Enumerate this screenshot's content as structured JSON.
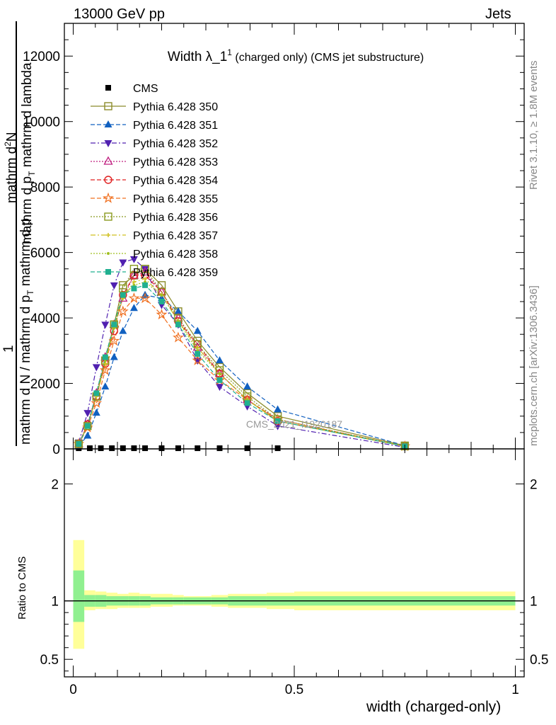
{
  "header": {
    "left": "13000 GeV pp",
    "right": "Jets"
  },
  "side_text": {
    "rivet": "Rivet 3.1.10, ≥ 1.8M events",
    "mcplots": "mcplots.cern.ch [arXiv:1306.3436]"
  },
  "main_title": {
    "main": "Width λ_1",
    "sup": "1",
    "rest": " (charged only) (CMS jet substructure)"
  },
  "watermark": "CMS_2021_I1920187",
  "y_axis_label": {
    "one": "1",
    "num_top": "mathrm d",
    "num_sup": "2",
    "num_mid": "N",
    "frac_num": "mathrm d p",
    "frac_num_sub": "T",
    "frac_num_rest": " mathrm d lambda",
    "frac_den": "mathrm d N / mathrm d p",
    "frac_den_sub": "T",
    "frac_den_rest": " mathrm d p"
  },
  "ratio_ylabel": "Ratio to CMS",
  "x_axis_label": "width (charged-only)",
  "colors": {
    "ratio_band_inner": "#90f090",
    "ratio_band_outer": "#ffff99"
  },
  "chart_data": [
    {
      "type": "line",
      "panel": "main",
      "x_range": [
        -0.02,
        1.02
      ],
      "y_range": [
        0,
        13000
      ],
      "y_ticks": [
        0,
        2000,
        4000,
        6000,
        8000,
        10000,
        12000
      ],
      "y_tick_labels": [
        "0",
        "2000",
        "4000",
        "6000",
        "8000",
        "10000",
        "12000"
      ],
      "legend_position": "top-left",
      "series": [
        {
          "name": "CMS",
          "color": "#000000",
          "marker": "square-filled",
          "dash": "none",
          "x": [
            0.0125,
            0.0375,
            0.0625,
            0.0875,
            0.1125,
            0.1375,
            0.1625,
            0.2,
            0.2375,
            0.2812,
            0.3312,
            0.3937,
            0.4625
          ],
          "y": [
            20,
            20,
            20,
            20,
            20,
            20,
            20,
            20,
            20,
            20,
            20,
            20,
            20
          ]
        },
        {
          "name": "Pythia 6.428 350",
          "color": "#8b8b2a",
          "marker": "square-open",
          "dash": "none",
          "x": [
            0.0125,
            0.0325,
            0.0525,
            0.0725,
            0.0925,
            0.1125,
            0.1375,
            0.1625,
            0.2,
            0.2375,
            0.2812,
            0.3312,
            0.3937,
            0.4625,
            0.75
          ],
          "y": [
            150,
            700,
            1600,
            2700,
            3800,
            5000,
            5300,
            5500,
            5000,
            4200,
            3300,
            2500,
            1700,
            1000,
            100
          ]
        },
        {
          "name": "Pythia 6.428 351",
          "color": "#1060c0",
          "marker": "triangle-up-filled",
          "dash": "6,3",
          "x": [
            0.0125,
            0.0325,
            0.0525,
            0.0725,
            0.0925,
            0.1125,
            0.1375,
            0.1625,
            0.2,
            0.2375,
            0.2812,
            0.3312,
            0.3937,
            0.4625,
            0.75
          ],
          "y": [
            100,
            400,
            1100,
            1900,
            2800,
            3600,
            4300,
            4700,
            4600,
            4200,
            3600,
            2700,
            1900,
            1200,
            100
          ]
        },
        {
          "name": "Pythia 6.428 352",
          "color": "#5020b0",
          "marker": "triangle-down-filled",
          "dash": "7,3,2,3",
          "x": [
            0.0125,
            0.0325,
            0.0525,
            0.0725,
            0.0925,
            0.1125,
            0.1375,
            0.1625,
            0.2,
            0.2375,
            0.2812,
            0.3312,
            0.3937,
            0.4625,
            0.75
          ],
          "y": [
            200,
            1100,
            2500,
            3800,
            5000,
            5700,
            5800,
            5500,
            4400,
            3800,
            2700,
            1900,
            1300,
            700,
            50
          ]
        },
        {
          "name": "Pythia 6.428 353",
          "color": "#c02080",
          "marker": "triangle-up-open",
          "dash": "2,2",
          "x": [
            0.0125,
            0.0325,
            0.0525,
            0.0725,
            0.0925,
            0.1125,
            0.1375,
            0.1625,
            0.2,
            0.2375,
            0.2812,
            0.3312,
            0.3937,
            0.4625,
            0.75
          ],
          "y": [
            150,
            750,
            1700,
            2800,
            3800,
            4600,
            5300,
            5400,
            4800,
            4000,
            3100,
            2300,
            1500,
            900,
            80
          ]
        },
        {
          "name": "Pythia 6.428 354",
          "color": "#e02020",
          "marker": "circle-open",
          "dash": "6,3",
          "x": [
            0.0125,
            0.0325,
            0.0525,
            0.0725,
            0.0925,
            0.1125,
            0.1375,
            0.1625,
            0.2,
            0.2375,
            0.2812,
            0.3312,
            0.3937,
            0.4625,
            0.75
          ],
          "y": [
            150,
            750,
            1600,
            2600,
            3600,
            4700,
            5300,
            5300,
            4800,
            3900,
            3200,
            2300,
            1500,
            850,
            80
          ]
        },
        {
          "name": "Pythia 6.428 355",
          "color": "#f07020",
          "marker": "star-open",
          "dash": "6,3",
          "x": [
            0.0125,
            0.0325,
            0.0525,
            0.0725,
            0.0925,
            0.1125,
            0.1375,
            0.1625,
            0.2,
            0.2375,
            0.2812,
            0.3312,
            0.3937,
            0.4625,
            0.75
          ],
          "y": [
            150,
            650,
            1400,
            2400,
            3300,
            4200,
            4600,
            4600,
            4100,
            3400,
            2700,
            2100,
            1500,
            900,
            80
          ]
        },
        {
          "name": "Pythia 6.428 356",
          "color": "#8a9a20",
          "marker": "square-open",
          "dash": "2,2",
          "x": [
            0.0125,
            0.0325,
            0.0525,
            0.0725,
            0.0925,
            0.1125,
            0.1375,
            0.1625,
            0.2,
            0.2375,
            0.2812,
            0.3312,
            0.3937,
            0.4625,
            0.75
          ],
          "y": [
            150,
            700,
            1600,
            2700,
            3800,
            4900,
            5500,
            5500,
            4800,
            4000,
            3200,
            2400,
            1600,
            900,
            80
          ]
        },
        {
          "name": "Pythia 6.428 357",
          "color": "#d0c020",
          "marker": "cross-small",
          "dash": "7,3,2,3",
          "x": [
            0.0125,
            0.0325,
            0.0525,
            0.0725,
            0.0925,
            0.1125,
            0.1375,
            0.1625,
            0.2,
            0.2375,
            0.2812,
            0.3312,
            0.3937,
            0.4625,
            0.75
          ],
          "y": [
            150,
            700,
            1600,
            2600,
            3700,
            4600,
            5100,
            5200,
            4700,
            3900,
            3100,
            2300,
            1500,
            850,
            80
          ]
        },
        {
          "name": "Pythia 6.428 358",
          "color": "#a0c020",
          "marker": "dot",
          "dash": "2,2",
          "x": [
            0.0125,
            0.0325,
            0.0525,
            0.0725,
            0.0925,
            0.1125,
            0.1375,
            0.1625,
            0.2,
            0.2375,
            0.2812,
            0.3312,
            0.3937,
            0.4625,
            0.75
          ],
          "y": [
            150,
            700,
            1650,
            2700,
            3700,
            4700,
            5000,
            5100,
            4700,
            3900,
            3000,
            2300,
            1500,
            850,
            80
          ]
        },
        {
          "name": "Pythia 6.428 359",
          "color": "#20b090",
          "marker": "square-filled",
          "dash": "6,3",
          "x": [
            0.0125,
            0.0325,
            0.0525,
            0.0725,
            0.0925,
            0.1125,
            0.1375,
            0.1625,
            0.2,
            0.2375,
            0.2812,
            0.3312,
            0.3937,
            0.4625,
            0.75
          ],
          "y": [
            150,
            700,
            1700,
            2800,
            3800,
            4700,
            4900,
            5000,
            4500,
            3800,
            2900,
            2100,
            1400,
            850,
            80
          ]
        }
      ]
    },
    {
      "type": "area",
      "panel": "ratio",
      "x_range": [
        -0.02,
        1.02
      ],
      "y_range": [
        0.35,
        2.3
      ],
      "y_ticks": [
        0.5,
        1,
        2
      ],
      "y_tick_labels": [
        "0.5",
        "1",
        "2"
      ],
      "x_ticks": [
        0,
        0.5,
        1
      ],
      "x_tick_labels": [
        "0",
        "0.5",
        "1"
      ],
      "bins": [
        {
          "x0": 0.0,
          "x1": 0.025,
          "inner_lo": 0.82,
          "inner_hi": 1.26,
          "outer_lo": 0.59,
          "outer_hi": 1.52
        },
        {
          "x0": 0.025,
          "x1": 0.05,
          "inner_lo": 0.95,
          "inner_hi": 1.05,
          "outer_lo": 0.92,
          "outer_hi": 1.09
        },
        {
          "x0": 0.05,
          "x1": 0.075,
          "inner_lo": 0.95,
          "inner_hi": 1.05,
          "outer_lo": 0.93,
          "outer_hi": 1.08
        },
        {
          "x0": 0.075,
          "x1": 0.1,
          "inner_lo": 0.96,
          "inner_hi": 1.04,
          "outer_lo": 0.93,
          "outer_hi": 1.07
        },
        {
          "x0": 0.1,
          "x1": 0.125,
          "inner_lo": 0.96,
          "inner_hi": 1.04,
          "outer_lo": 0.94,
          "outer_hi": 1.06
        },
        {
          "x0": 0.125,
          "x1": 0.15,
          "inner_lo": 0.96,
          "inner_hi": 1.04,
          "outer_lo": 0.94,
          "outer_hi": 1.07
        },
        {
          "x0": 0.15,
          "x1": 0.175,
          "inner_lo": 0.96,
          "inner_hi": 1.04,
          "outer_lo": 0.94,
          "outer_hi": 1.06
        },
        {
          "x0": 0.175,
          "x1": 0.225,
          "inner_lo": 0.97,
          "inner_hi": 1.03,
          "outer_lo": 0.95,
          "outer_hi": 1.06
        },
        {
          "x0": 0.225,
          "x1": 0.25,
          "inner_lo": 0.97,
          "inner_hi": 1.03,
          "outer_lo": 0.96,
          "outer_hi": 1.05
        },
        {
          "x0": 0.25,
          "x1": 0.3125,
          "inner_lo": 0.97,
          "inner_hi": 1.03,
          "outer_lo": 0.96,
          "outer_hi": 1.04
        },
        {
          "x0": 0.3125,
          "x1": 0.35,
          "inner_lo": 0.97,
          "inner_hi": 1.03,
          "outer_lo": 0.95,
          "outer_hi": 1.05
        },
        {
          "x0": 0.35,
          "x1": 0.4375,
          "inner_lo": 0.96,
          "inner_hi": 1.04,
          "outer_lo": 0.94,
          "outer_hi": 1.06
        },
        {
          "x0": 0.4375,
          "x1": 0.5,
          "inner_lo": 0.96,
          "inner_hi": 1.04,
          "outer_lo": 0.93,
          "outer_hi": 1.07
        },
        {
          "x0": 0.5,
          "x1": 1.0,
          "inner_lo": 0.96,
          "inner_hi": 1.04,
          "outer_lo": 0.92,
          "outer_hi": 1.08
        }
      ]
    }
  ]
}
